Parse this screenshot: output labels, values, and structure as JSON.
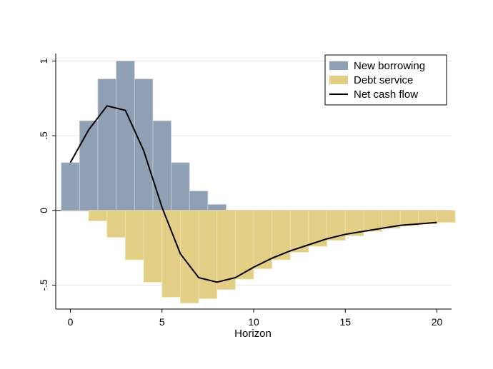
{
  "chart_data": {
    "type": "bar",
    "xlabel": "Horizon",
    "ylabel": "",
    "xlim": [
      -0.8,
      20.8
    ],
    "ylim": [
      -0.66,
      1.05
    ],
    "x_ticks": [
      0,
      5,
      10,
      15,
      20
    ],
    "x_tick_labels": [
      "0",
      "5",
      "10",
      "15",
      "20"
    ],
    "y_ticks": [
      -0.5,
      0,
      0.5,
      1
    ],
    "y_tick_labels": [
      "-.5",
      "0",
      ".5",
      "1"
    ],
    "grid": true,
    "legend_position": "top-right",
    "x": [
      0,
      1,
      2,
      3,
      4,
      5,
      6,
      7,
      8,
      9,
      10,
      11,
      12,
      13,
      14,
      15,
      16,
      17,
      18,
      19,
      20
    ],
    "series": [
      {
        "name": "New borrowing",
        "kind": "bar",
        "color": "#8fa0b5",
        "values": [
          0.32,
          0.6,
          0.88,
          1.0,
          0.88,
          0.6,
          0.32,
          0.13,
          0.04,
          0,
          0,
          0,
          0,
          0,
          0,
          0,
          0,
          0,
          0,
          0,
          0
        ]
      },
      {
        "name": "Debt service",
        "kind": "bar",
        "color": "#e2cf85",
        "values": [
          0,
          -0.07,
          -0.18,
          -0.33,
          -0.48,
          -0.58,
          -0.62,
          -0.59,
          -0.53,
          -0.46,
          -0.39,
          -0.33,
          -0.28,
          -0.24,
          -0.2,
          -0.17,
          -0.14,
          -0.12,
          -0.1,
          -0.09,
          -0.08
        ]
      },
      {
        "name": "Net cash flow",
        "kind": "line",
        "color": "#000000",
        "values": [
          0.32,
          0.54,
          0.7,
          0.67,
          0.4,
          0.02,
          -0.29,
          -0.45,
          -0.48,
          -0.45,
          -0.38,
          -0.32,
          -0.27,
          -0.23,
          -0.19,
          -0.16,
          -0.14,
          -0.12,
          -0.1,
          -0.09,
          -0.08
        ]
      }
    ]
  }
}
